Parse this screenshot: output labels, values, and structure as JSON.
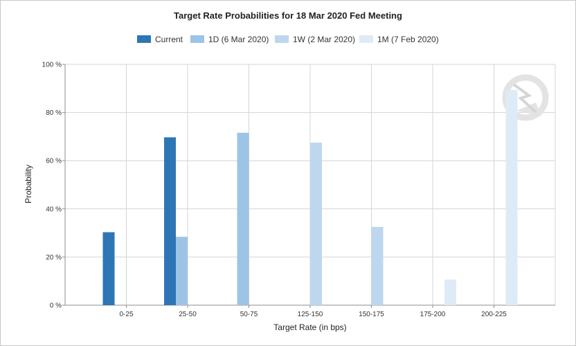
{
  "chart_data": {
    "type": "bar",
    "title": "Target Rate Probabilities for 18 Mar 2020 Fed Meeting",
    "xlabel": "Target Rate (in bps)",
    "ylabel": "Probability",
    "categories": [
      "0-25",
      "25-50",
      "50-75",
      "125-150",
      "150-175",
      "175-200",
      "200-225"
    ],
    "ylim": [
      0,
      100
    ],
    "yticks": [
      0,
      20,
      40,
      60,
      80,
      100
    ],
    "ytick_labels": [
      "0 %",
      "20 %",
      "40 %",
      "60 %",
      "80 %",
      "100 %"
    ],
    "grid": true,
    "legend_position": "top-center",
    "series": [
      {
        "name": "Current",
        "color": "#2e75b6",
        "values": [
          30.3,
          69.7,
          0,
          0,
          0,
          0,
          0
        ]
      },
      {
        "name": "1D (6 Mar 2020)",
        "color": "#9dc3e6",
        "values": [
          0,
          28.4,
          71.6,
          0,
          0,
          0,
          0
        ]
      },
      {
        "name": "1W (2 Mar 2020)",
        "color": "#bdd7ee",
        "values": [
          0,
          0,
          0,
          67.5,
          32.5,
          0,
          0
        ]
      },
      {
        "name": "1M (7 Feb 2020)",
        "color": "#deebf7",
        "values": [
          0,
          0,
          0,
          0,
          0,
          10.6,
          89.4
        ]
      }
    ]
  },
  "watermark": "cme-logo-watermark"
}
